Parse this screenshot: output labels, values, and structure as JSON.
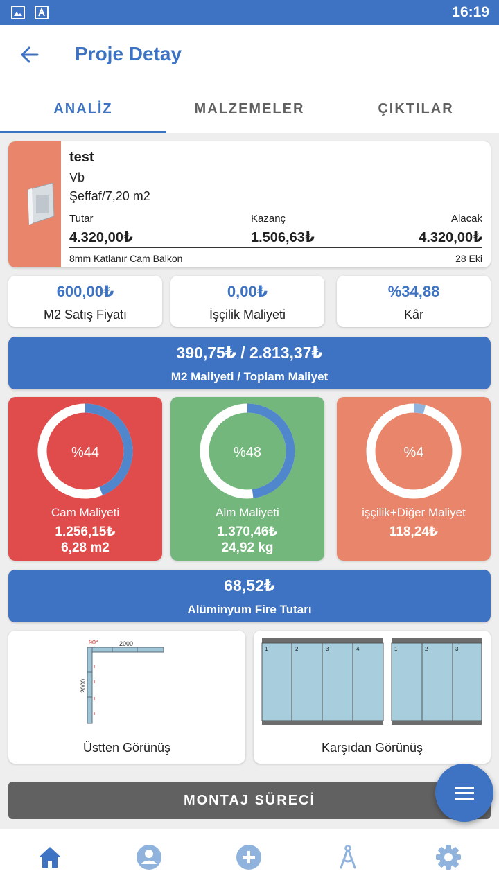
{
  "status_bar": {
    "time": "16:19"
  },
  "app_bar": {
    "title": "Proje Detay"
  },
  "tabs": [
    {
      "label": "ANALİZ",
      "active": true
    },
    {
      "label": "MALZEMELER",
      "active": false
    },
    {
      "label": "ÇIKTILAR",
      "active": false
    }
  ],
  "project": {
    "name": "test",
    "line1": "Vb",
    "line2": "Şeffaf/7,20 m2",
    "tutar_label": "Tutar",
    "tutar_value": "4.320,00₺",
    "kazanc_label": "Kazanç",
    "kazanc_value": "1.506,63₺",
    "alacak_label": "Alacak",
    "alacak_value": "4.320,00₺",
    "product": "8mm Katlanır Cam Balkon",
    "date": "28 Eki"
  },
  "metrics": [
    {
      "value": "600,00₺",
      "label": "M2 Satış Fiyatı"
    },
    {
      "value": "0,00₺",
      "label": "İşçilik Maliyeti"
    },
    {
      "value": "%34,88",
      "label": "Kâr"
    }
  ],
  "total_cost": {
    "value": "390,75₺ / 2.813,37₺",
    "label": "M2 Maliyeti / Toplam Maliyet"
  },
  "breakdown": [
    {
      "percent_label": "%44",
      "fraction": 0.44,
      "name": "Cam Maliyeti",
      "amount": "1.256,15₺",
      "extra": "6,28 m2",
      "color": "#e04b4b"
    },
    {
      "percent_label": "%48",
      "fraction": 0.48,
      "name": "Alm Maliyeti",
      "amount": "1.370,46₺",
      "extra": "24,92 kg",
      "color": "#74b77d"
    },
    {
      "percent_label": "%4",
      "fraction": 0.04,
      "name": "işçilik+Diğer Maliyet",
      "amount": "118,24₺",
      "extra": "",
      "color": "#e8856a"
    }
  ],
  "fire": {
    "value": "68,52₺",
    "label": "Alüminyum Fire Tutarı"
  },
  "views": {
    "top": {
      "caption": "Üstten Görünüş",
      "angle": "90°",
      "width_dim": "2000",
      "height_dim": "2000"
    },
    "front": {
      "caption": "Karşıdan Görünüş",
      "panels_left": [
        "1",
        "2",
        "3",
        "4"
      ],
      "panels_right": [
        "1",
        "2",
        "3"
      ]
    }
  },
  "montaj_button": "MONTAJ SÜRECİ",
  "colors": {
    "primary": "#3d73c2",
    "cam": "#e04b4b",
    "alm": "#74b77d",
    "iscilik": "#e8856a",
    "montaj": "#616161"
  },
  "bottom_nav": [
    "home-icon",
    "account-icon",
    "add-circle-icon",
    "compass-icon",
    "settings-icon"
  ]
}
